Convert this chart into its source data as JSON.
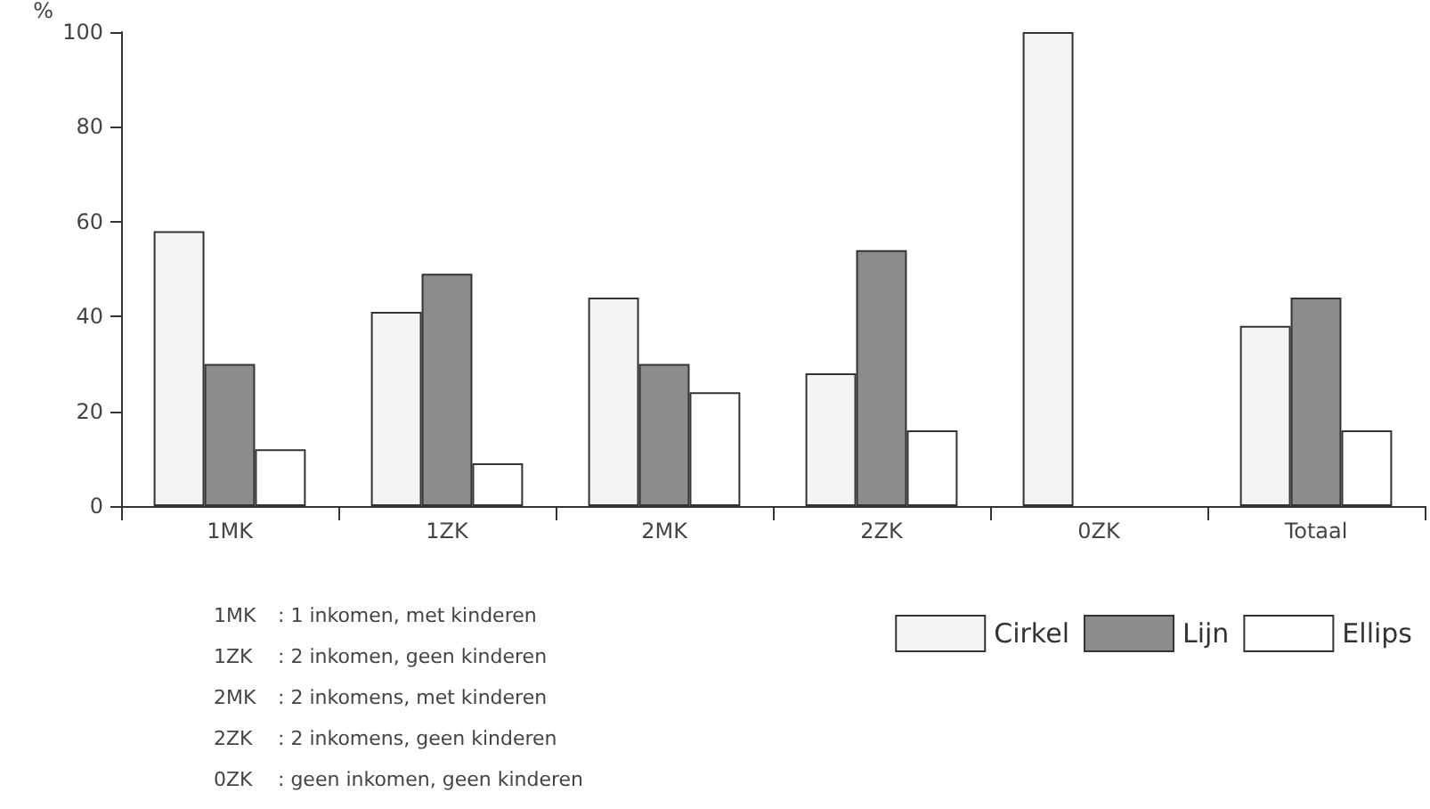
{
  "chart_data": {
    "type": "bar",
    "ylabel": "%",
    "categories": [
      "1MK",
      "1ZK",
      "2MK",
      "2ZK",
      "0ZK",
      "Totaal"
    ],
    "series": [
      {
        "name": "Cirkel",
        "color": "#f4f4f4",
        "values": [
          58,
          41,
          44,
          28,
          100,
          38
        ]
      },
      {
        "name": "Lijn",
        "color": "#8c8c8c",
        "values": [
          30,
          49,
          30,
          54,
          0,
          44
        ]
      },
      {
        "name": "Ellips",
        "color": "#ffffff",
        "values": [
          12,
          9,
          24,
          16,
          0,
          16
        ]
      }
    ],
    "ylim": [
      0,
      100
    ],
    "yticks": [
      0,
      20,
      40,
      60,
      80,
      100
    ],
    "grid": false,
    "legend": "bottom right",
    "annotations": [
      "1MK\t: 1 inkomen, met kinderen",
      "1ZK\t: 2 inkomen, geen kinderen",
      "2MK\t: 2 inkomens, met kinderen",
      "2ZK\t: 2 inkomens, geen kinderen",
      "0ZK\t: geen inkomen, geen kinderen"
    ]
  }
}
